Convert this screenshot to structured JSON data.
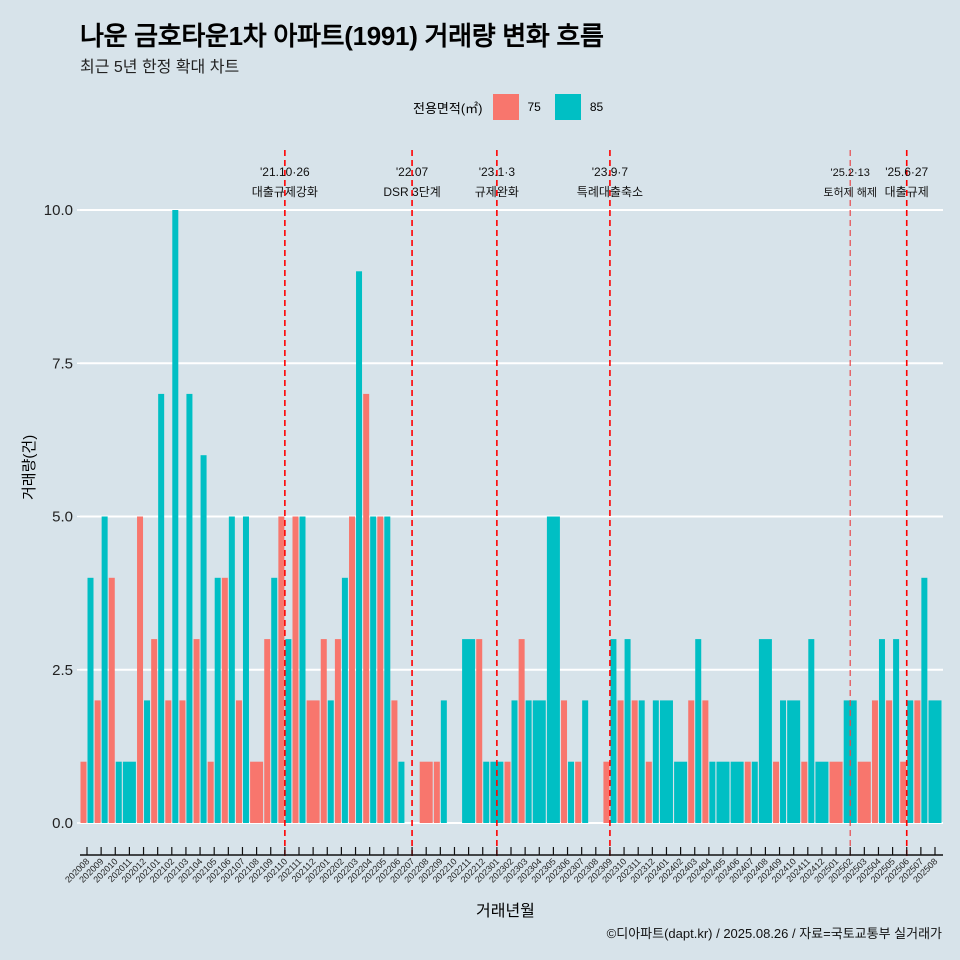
{
  "title": "나운 금호타운1차 아파트(1991) 거래량 변화 흐름",
  "subtitle": "최근 5년 한정 확대 차트",
  "caption": "©디아파트(dapt.kr) / 2025.08.26 / 자료=국토교통부 실거래가",
  "legend": {
    "title": "전용면적(㎡)",
    "items": [
      {
        "label": "75",
        "color": "#f8766d"
      },
      {
        "label": "85",
        "color": "#00bfc4"
      }
    ]
  },
  "chart_data": {
    "type": "bar",
    "title": "나운 금호타운1차 아파트(1991) 거래량 변화 흐름",
    "subtitle": "최근 5년 한정 확대 차트",
    "xlabel": "거래년월",
    "ylabel": "거래량(건)",
    "ylim": [
      0,
      10
    ],
    "yticks": [
      "0.0",
      "2.5",
      "5.0",
      "7.5",
      "10.0"
    ],
    "ytick_values": [
      0,
      2.5,
      5,
      7.5,
      10
    ],
    "grid": true,
    "legend_position": "top",
    "categories": [
      "202008",
      "202009",
      "202010",
      "202011",
      "202012",
      "202101",
      "202102",
      "202103",
      "202104",
      "202105",
      "202106",
      "202107",
      "202108",
      "202109",
      "202110",
      "202111",
      "202112",
      "202201",
      "202202",
      "202203",
      "202204",
      "202205",
      "202206",
      "202207",
      "202208",
      "202209",
      "202210",
      "202211",
      "202212",
      "202301",
      "202302",
      "202303",
      "202304",
      "202305",
      "202306",
      "202307",
      "202308",
      "202309",
      "202310",
      "202311",
      "202312",
      "202401",
      "202402",
      "202403",
      "202404",
      "202405",
      "202406",
      "202407",
      "202408",
      "202409",
      "202410",
      "202411",
      "202412",
      "202501",
      "202502",
      "202503",
      "202504",
      "202505",
      "202506",
      "202507",
      "202508"
    ],
    "series": [
      {
        "name": "75",
        "color": "#f8766d",
        "values": [
          1,
          2,
          4,
          null,
          5,
          3,
          2,
          2,
          3,
          1,
          4,
          2,
          1,
          3,
          5,
          5,
          2,
          3,
          3,
          5,
          7,
          5,
          2,
          null,
          1,
          1,
          null,
          null,
          3,
          null,
          1,
          3,
          null,
          null,
          2,
          1,
          null,
          1,
          2,
          2,
          1,
          null,
          null,
          2,
          2,
          null,
          null,
          1,
          null,
          1,
          null,
          1,
          null,
          1,
          null,
          1,
          2,
          2,
          1,
          2,
          null
        ]
      },
      {
        "name": "85",
        "color": "#00bfc4",
        "values": [
          4,
          5,
          1,
          1,
          2,
          7,
          10,
          7,
          6,
          4,
          5,
          5,
          null,
          4,
          3,
          5,
          null,
          2,
          4,
          9,
          5,
          5,
          1,
          null,
          null,
          2,
          null,
          3,
          1,
          1,
          2,
          2,
          2,
          5,
          1,
          2,
          null,
          3,
          3,
          2,
          2,
          2,
          1,
          3,
          1,
          1,
          1,
          1,
          3,
          2,
          2,
          3,
          1,
          null,
          2,
          null,
          3,
          3,
          2,
          4,
          2
        ]
      }
    ],
    "annotations": [
      {
        "month": "202110",
        "date": "'21.10·26",
        "label": "대출규제강화"
      },
      {
        "month": "202207",
        "date": "'22.07",
        "label": "DSR 3단계"
      },
      {
        "month": "202301",
        "date": "'23.1·3",
        "label": "규제완화"
      },
      {
        "month": "202309",
        "date": "'23.9·7",
        "label": "특례대출축소"
      },
      {
        "month": "202502",
        "date": "'25.2·13",
        "label": "토허제 해제"
      },
      {
        "month": "202506",
        "date": "'25.6·27",
        "label": "대출규제"
      }
    ]
  }
}
